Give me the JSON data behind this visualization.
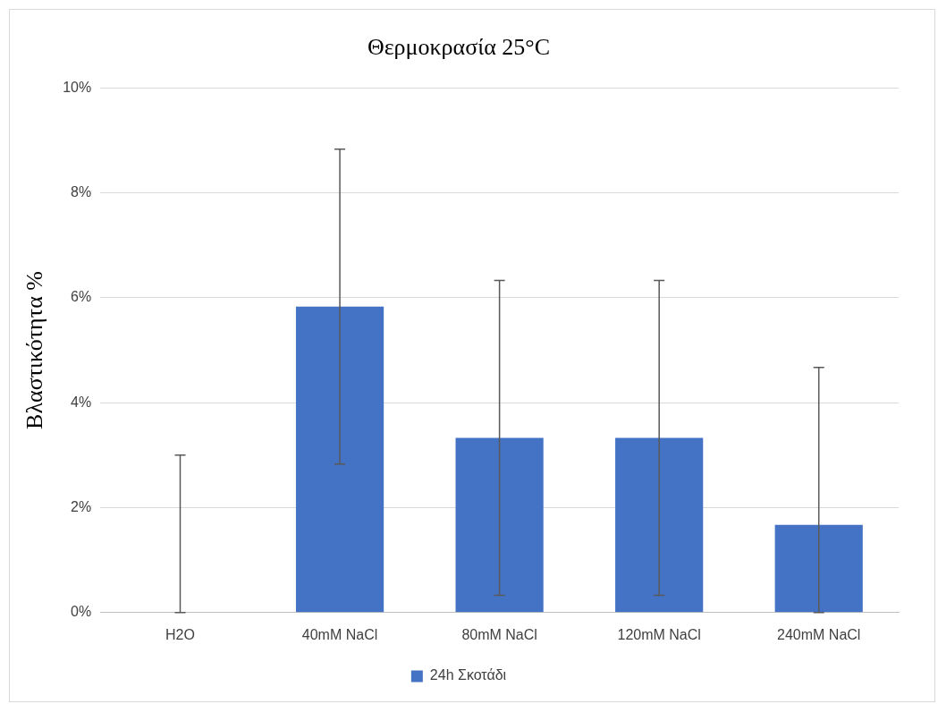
{
  "chart_data": {
    "type": "bar",
    "title": "Θερμοκρασία 25°C",
    "ylabel": "Βλαστικότητα %",
    "categories": [
      "H2O",
      "40mM NaCl",
      "80mM NaCl",
      "120mM NaCl",
      "240mM NaCl"
    ],
    "series": [
      {
        "name": "24h Σκοτάδι",
        "color": "#4472c4",
        "values": [
          0,
          5.83,
          3.33,
          3.33,
          1.67
        ],
        "errors": [
          [
            0,
            3
          ],
          [
            2.83,
            8.83
          ],
          [
            0.33,
            6.33
          ],
          [
            0.33,
            6.33
          ],
          [
            0,
            4.67
          ]
        ]
      }
    ],
    "ylim": [
      0,
      10
    ],
    "yticks": [
      {
        "value": 0,
        "label": "0%"
      },
      {
        "value": 2,
        "label": "2%"
      },
      {
        "value": 4,
        "label": "4%"
      },
      {
        "value": 6,
        "label": "6%"
      },
      {
        "value": 8,
        "label": "8%"
      },
      {
        "value": 10,
        "label": "10%"
      }
    ],
    "grid": "y",
    "legend": "bottom"
  }
}
